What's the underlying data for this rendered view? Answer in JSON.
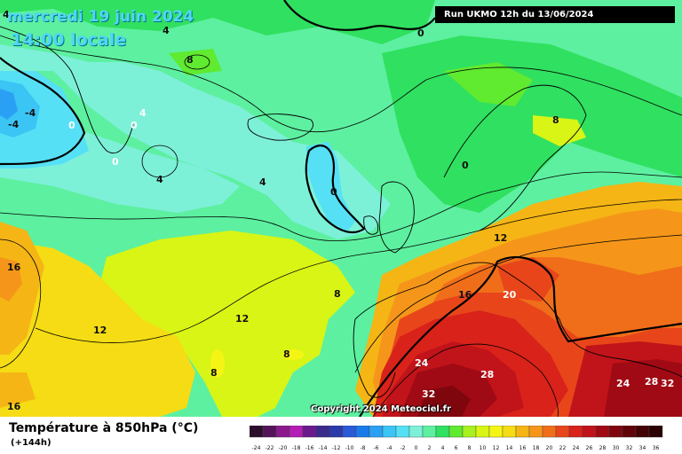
{
  "header": {
    "date": "mercredi 19 juin 2024",
    "time": "14:00 locale",
    "run": "Run UKMO 12h du 13/06/2024"
  },
  "footer": {
    "variable": "Température à 850hPa (°C)",
    "lead": "(+144h)",
    "copyright": "Copyright 2024 Meteociel.fr"
  },
  "legend": {
    "ticks": [
      "-24",
      "-22",
      "-20",
      "-18",
      "-16",
      "-14",
      "-12",
      "-10",
      "-8",
      "-6",
      "-4",
      "-2",
      "0",
      "2",
      "4",
      "6",
      "8",
      "10",
      "12",
      "14",
      "16",
      "18",
      "20",
      "22",
      "24",
      "26",
      "28",
      "30",
      "32",
      "34",
      "36"
    ],
    "colors": [
      "#2b0f2b",
      "#55145a",
      "#8a1a8c",
      "#b31cb5",
      "#6a1a8c",
      "#3a2a8c",
      "#2a3aa8",
      "#2a5ad8",
      "#1a7ae8",
      "#2aa0f5",
      "#3ac5f5",
      "#55e0f5",
      "#7df0d8",
      "#5df0a0",
      "#30e060",
      "#60ea30",
      "#a8f020",
      "#d8f515",
      "#f5f515",
      "#f5dc15",
      "#f5b515",
      "#f5961a",
      "#f06e1a",
      "#e8461a",
      "#d8221a",
      "#c0141a",
      "#a00a14",
      "#80060e",
      "#60040a",
      "#420206",
      "#2a0104"
    ]
  },
  "map_labels": [
    {
      "text": "4",
      "color": "dark"
    },
    {
      "text": "4",
      "color": "dark"
    },
    {
      "text": "-4",
      "color": "dark"
    },
    {
      "text": "-4",
      "color": "dark"
    },
    {
      "text": "0",
      "color": "white"
    },
    {
      "text": "0",
      "color": "white"
    },
    {
      "text": "0",
      "color": "white"
    },
    {
      "text": "0",
      "color": "dark"
    },
    {
      "text": "4",
      "color": "white"
    },
    {
      "text": "4",
      "color": "dark"
    },
    {
      "text": "4",
      "color": "dark"
    },
    {
      "text": "8",
      "color": "dark"
    },
    {
      "text": "0",
      "color": "dark"
    },
    {
      "text": "0",
      "color": "dark"
    },
    {
      "text": "8",
      "color": "dark"
    },
    {
      "text": "12",
      "color": "dark"
    },
    {
      "text": "16",
      "color": "dark"
    },
    {
      "text": "20",
      "color": "white"
    },
    {
      "text": "16",
      "color": "dark"
    },
    {
      "text": "12",
      "color": "dark"
    },
    {
      "text": "8",
      "color": "dark"
    },
    {
      "text": "12",
      "color": "dark"
    },
    {
      "text": "8",
      "color": "dark"
    },
    {
      "text": "8",
      "color": "dark"
    },
    {
      "text": "16",
      "color": "dark"
    },
    {
      "text": "24",
      "color": "white"
    },
    {
      "text": "28",
      "color": "white"
    },
    {
      "text": "32",
      "color": "white"
    },
    {
      "text": "24",
      "color": "white"
    },
    {
      "text": "28",
      "color": "white"
    },
    {
      "text": "32",
      "color": "white"
    }
  ]
}
